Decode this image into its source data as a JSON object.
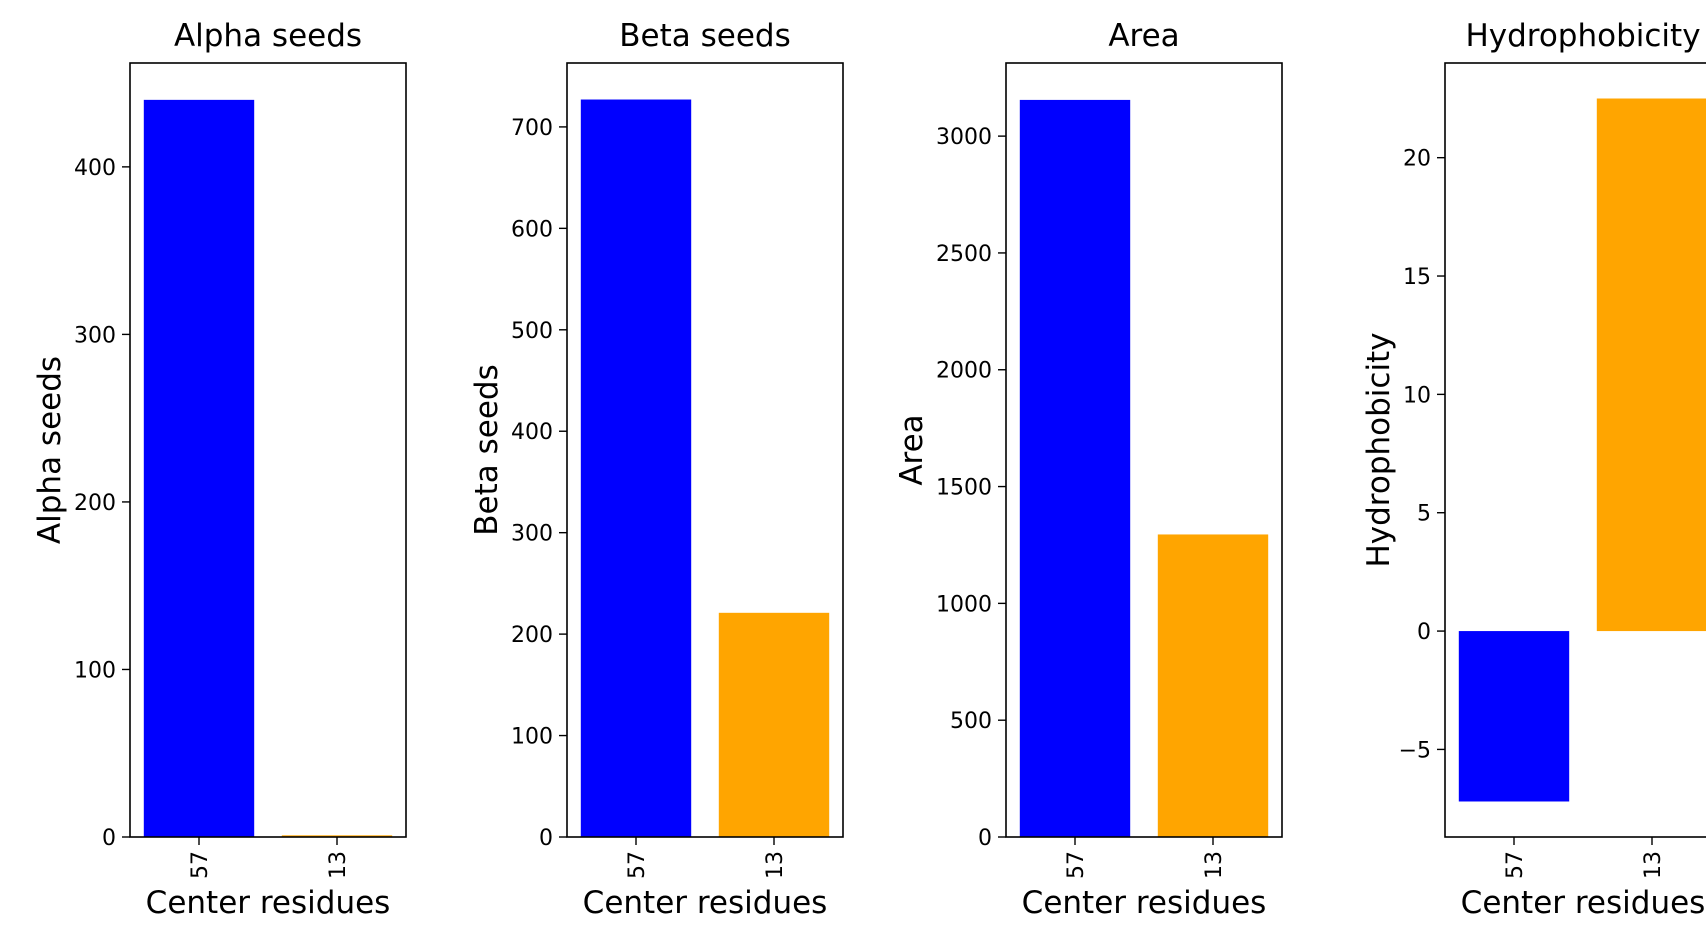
{
  "chart_data": [
    {
      "type": "bar",
      "title": "Alpha seeds",
      "xlabel": "Center residues",
      "ylabel": "Alpha seeds",
      "categories": [
        "57",
        "13"
      ],
      "values": [
        440,
        1
      ],
      "colors": [
        "#0000ff",
        "#ffa500"
      ],
      "ylim": [
        0,
        462
      ],
      "yticks": [
        0,
        100,
        200,
        300,
        400
      ],
      "ytick_labels": [
        "0",
        "100",
        "200",
        "300",
        "400"
      ]
    },
    {
      "type": "bar",
      "title": "Beta seeds",
      "xlabel": "Center residues",
      "ylabel": "Beta seeds",
      "categories": [
        "57",
        "13"
      ],
      "values": [
        727,
        221
      ],
      "colors": [
        "#0000ff",
        "#ffa500"
      ],
      "ylim": [
        0,
        763
      ],
      "yticks": [
        0,
        100,
        200,
        300,
        400,
        500,
        600,
        700
      ],
      "ytick_labels": [
        "0",
        "100",
        "200",
        "300",
        "400",
        "500",
        "600",
        "700"
      ]
    },
    {
      "type": "bar",
      "title": "Area",
      "xlabel": "Center residues",
      "ylabel": "Area",
      "categories": [
        "57",
        "13"
      ],
      "values": [
        3155,
        1295
      ],
      "colors": [
        "#0000ff",
        "#ffa500"
      ],
      "ylim": [
        0,
        3313
      ],
      "yticks": [
        0,
        500,
        1000,
        1500,
        2000,
        2500,
        3000
      ],
      "ytick_labels": [
        "0",
        "500",
        "1000",
        "1500",
        "2000",
        "2500",
        "3000"
      ]
    },
    {
      "type": "bar",
      "title": "Hydrophobicity",
      "xlabel": "Center residues",
      "ylabel": "Hydrophobicity",
      "categories": [
        "57",
        "13"
      ],
      "values": [
        -7.2,
        22.5
      ],
      "colors": [
        "#0000ff",
        "#ffa500"
      ],
      "ylim": [
        -8.7,
        24.0
      ],
      "yticks": [
        -5,
        0,
        5,
        10,
        15,
        20
      ],
      "ytick_labels": [
        "−5",
        "0",
        "5",
        "10",
        "15",
        "20"
      ]
    }
  ]
}
